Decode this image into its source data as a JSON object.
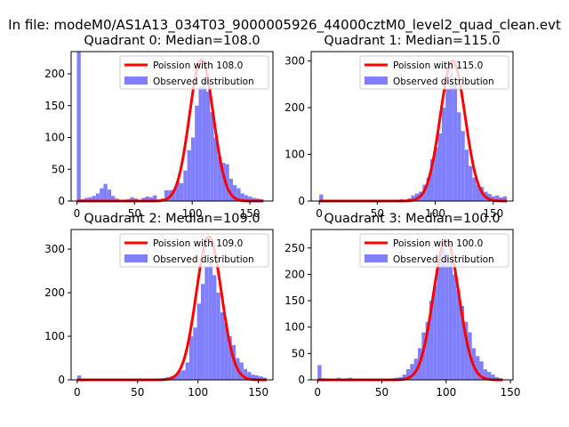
{
  "figure": {
    "suptitle": "In file: modeM0/AS1A13_034T03_9000005926_44000cztM0_level2_quad_clean.evt"
  },
  "colors": {
    "poisson_line": "#ff0000",
    "observed_bars": "#8080ff",
    "axis": "#000000",
    "background": "#ffffff"
  },
  "chart_data": [
    {
      "type": "bar",
      "title": "Quadrant 0: Median=108.0",
      "xlabel": "",
      "ylabel": "",
      "xlim": [
        -5,
        170
      ],
      "ylim": [
        0,
        235
      ],
      "xticks": [
        0,
        50,
        100,
        150
      ],
      "yticks": [
        0,
        50,
        100,
        150,
        200
      ],
      "legend_position": "top-right",
      "series": [
        {
          "name": "Observed distribution",
          "kind": "histogram",
          "bins": [
            [
              0,
              3.3,
              240
            ],
            [
              3.3,
              6.6,
              3
            ],
            [
              6.6,
              9.9,
              5
            ],
            [
              9.9,
              13.2,
              6
            ],
            [
              13.2,
              16.5,
              8
            ],
            [
              16.5,
              19.8,
              12
            ],
            [
              19.8,
              23.1,
              20
            ],
            [
              23.1,
              26.4,
              27
            ],
            [
              26.4,
              29.7,
              18
            ],
            [
              29.7,
              33,
              8
            ],
            [
              33,
              36.3,
              4
            ],
            [
              36.3,
              39.6,
              2
            ],
            [
              39.6,
              42.9,
              1
            ],
            [
              42.9,
              46.2,
              3
            ],
            [
              46.2,
              49.5,
              6
            ],
            [
              49.5,
              52.8,
              4
            ],
            [
              52.8,
              56.1,
              2
            ],
            [
              56.1,
              59.4,
              5
            ],
            [
              59.4,
              62.7,
              7
            ],
            [
              62.7,
              66,
              6
            ],
            [
              66,
              69.3,
              9
            ],
            [
              69.3,
              72.6,
              2
            ],
            [
              72.6,
              75.9,
              4
            ],
            [
              75.9,
              79.2,
              17
            ],
            [
              79.2,
              82.5,
              17
            ],
            [
              82.5,
              85.8,
              18
            ],
            [
              85.8,
              89.1,
              30
            ],
            [
              89.1,
              92.4,
              28
            ],
            [
              92.4,
              95.7,
              48
            ],
            [
              95.7,
              99,
              80
            ],
            [
              99,
              102.3,
              100
            ],
            [
              102.3,
              105.6,
              150
            ],
            [
              105.6,
              108.9,
              180
            ],
            [
              108.9,
              112.2,
              195
            ],
            [
              112.2,
              115.5,
              172
            ],
            [
              115.5,
              118.8,
              140
            ],
            [
              118.8,
              122.1,
              100
            ],
            [
              122.1,
              125.4,
              70
            ],
            [
              125.4,
              128.7,
              60
            ],
            [
              128.7,
              132,
              58
            ],
            [
              132,
              135.3,
              35
            ],
            [
              135.3,
              138.6,
              25
            ],
            [
              138.6,
              141.9,
              20
            ],
            [
              141.9,
              145.2,
              12
            ],
            [
              145.2,
              148.5,
              9
            ],
            [
              148.5,
              151.8,
              7
            ],
            [
              151.8,
              155.1,
              5
            ],
            [
              155.1,
              158.4,
              4
            ],
            [
              158.4,
              161.7,
              3
            ]
          ]
        },
        {
          "name": "Poission with 108.0",
          "kind": "line",
          "mean": 108.0,
          "peak": 222
        }
      ]
    },
    {
      "type": "bar",
      "title": "Quadrant 1: Median=115.0",
      "xlabel": "",
      "ylabel": "",
      "xlim": [
        -7,
        167
      ],
      "ylim": [
        0,
        320
      ],
      "xticks": [
        0,
        50,
        100,
        150
      ],
      "yticks": [
        0,
        100,
        200,
        300
      ],
      "legend_position": "top-right",
      "series": [
        {
          "name": "Observed distribution",
          "kind": "histogram",
          "bins": [
            [
              0,
              3.3,
              14
            ],
            [
              3.3,
              6.6,
              2
            ],
            [
              6.6,
              9.9,
              1
            ],
            [
              9.9,
              13.2,
              1
            ],
            [
              13.2,
              16.5,
              1
            ],
            [
              16.5,
              19.8,
              2
            ],
            [
              19.8,
              23.1,
              1
            ],
            [
              23.1,
              26.4,
              1
            ],
            [
              26.4,
              29.7,
              1
            ],
            [
              29.7,
              33,
              1
            ],
            [
              33,
              36.3,
              1
            ],
            [
              36.3,
              39.6,
              1
            ],
            [
              39.6,
              42.9,
              1
            ],
            [
              42.9,
              46.2,
              1
            ],
            [
              46.2,
              49.5,
              1
            ],
            [
              49.5,
              52.8,
              2
            ],
            [
              52.8,
              56.1,
              1
            ],
            [
              56.1,
              59.4,
              1
            ],
            [
              59.4,
              62.7,
              2
            ],
            [
              62.7,
              66,
              1
            ],
            [
              66,
              69.3,
              2
            ],
            [
              69.3,
              72.6,
              4
            ],
            [
              72.6,
              75.9,
              3
            ],
            [
              75.9,
              79.2,
              6
            ],
            [
              79.2,
              82.5,
              12
            ],
            [
              82.5,
              85.8,
              16
            ],
            [
              85.8,
              89.1,
              20
            ],
            [
              89.1,
              92.4,
              35
            ],
            [
              92.4,
              95.7,
              50
            ],
            [
              95.7,
              99,
              90
            ],
            [
              99,
              102.3,
              115
            ],
            [
              102.3,
              105.6,
              145
            ],
            [
              105.6,
              108.9,
              200
            ],
            [
              108.9,
              112.2,
              240
            ],
            [
              112.2,
              115.5,
              275
            ],
            [
              115.5,
              118.8,
              250
            ],
            [
              118.8,
              122.1,
              190
            ],
            [
              122.1,
              125.4,
              150
            ],
            [
              125.4,
              128.7,
              110
            ],
            [
              128.7,
              132,
              75
            ],
            [
              132,
              135.3,
              50
            ],
            [
              135.3,
              138.6,
              35
            ],
            [
              138.6,
              141.9,
              30
            ],
            [
              141.9,
              145.2,
              20
            ],
            [
              145.2,
              148.5,
              15
            ],
            [
              148.5,
              151.8,
              10
            ],
            [
              151.8,
              155.1,
              12
            ],
            [
              155.1,
              158.4,
              8
            ],
            [
              158.4,
              161.7,
              10
            ]
          ]
        },
        {
          "name": "Poission with 115.0",
          "kind": "line",
          "mean": 115.0,
          "peak": 300
        }
      ]
    },
    {
      "type": "bar",
      "title": "Quadrant 2: Median=109.0",
      "xlabel": "",
      "ylabel": "",
      "xlim": [
        -5,
        162
      ],
      "ylim": [
        0,
        345
      ],
      "xticks": [
        0,
        50,
        100,
        150
      ],
      "yticks": [
        0,
        100,
        200,
        300
      ],
      "legend_position": "top-right",
      "series": [
        {
          "name": "Observed distribution",
          "kind": "histogram",
          "bins": [
            [
              0,
              3.2,
              10
            ],
            [
              3.2,
              6.4,
              2
            ],
            [
              6.4,
              9.6,
              1
            ],
            [
              9.6,
              12.8,
              1
            ],
            [
              12.8,
              16,
              1
            ],
            [
              16,
              19.2,
              2
            ],
            [
              19.2,
              22.4,
              1
            ],
            [
              22.4,
              25.6,
              1
            ],
            [
              25.6,
              28.8,
              1
            ],
            [
              28.8,
              32,
              1
            ],
            [
              32,
              35.2,
              1
            ],
            [
              35.2,
              38.4,
              1
            ],
            [
              38.4,
              41.6,
              1
            ],
            [
              41.6,
              44.8,
              1
            ],
            [
              44.8,
              48,
              1
            ],
            [
              48,
              51.2,
              1
            ],
            [
              51.2,
              54.4,
              1
            ],
            [
              54.4,
              57.6,
              1
            ],
            [
              57.6,
              60.8,
              2
            ],
            [
              60.8,
              64,
              1
            ],
            [
              64,
              67.2,
              2
            ],
            [
              67.2,
              70.4,
              3
            ],
            [
              70.4,
              73.6,
              4
            ],
            [
              73.6,
              76.8,
              6
            ],
            [
              76.8,
              80,
              8
            ],
            [
              80,
              83.2,
              12
            ],
            [
              83.2,
              86.4,
              20
            ],
            [
              86.4,
              89.6,
              22
            ],
            [
              89.6,
              92.8,
              40
            ],
            [
              92.8,
              96,
              100
            ],
            [
              96,
              99.2,
              120
            ],
            [
              99.2,
              102.4,
              175
            ],
            [
              102.4,
              105.6,
              220
            ],
            [
              105.6,
              108.8,
              260
            ],
            [
              108.8,
              112,
              270
            ],
            [
              112,
              115.2,
              240
            ],
            [
              115.2,
              118.4,
              200
            ],
            [
              118.4,
              121.6,
              155
            ],
            [
              121.6,
              124.8,
              130
            ],
            [
              124.8,
              128,
              100
            ],
            [
              128,
              131.2,
              80
            ],
            [
              131.2,
              134.4,
              50
            ],
            [
              134.4,
              137.6,
              40
            ],
            [
              137.6,
              140.8,
              25
            ],
            [
              140.8,
              144,
              18
            ],
            [
              144,
              147.2,
              12
            ],
            [
              147.2,
              150.4,
              10
            ],
            [
              150.4,
              153.6,
              8
            ],
            [
              153.6,
              156.8,
              5
            ]
          ]
        },
        {
          "name": "Poission with 109.0",
          "kind": "line",
          "mean": 109.0,
          "peak": 328
        }
      ]
    },
    {
      "type": "bar",
      "title": "Quadrant 3: Median=100.0",
      "xlabel": "",
      "ylabel": "",
      "xlim": [
        -5,
        152
      ],
      "ylim": [
        0,
        285
      ],
      "xticks": [
        0,
        50,
        100,
        150
      ],
      "yticks": [
        0,
        50,
        100,
        150,
        200,
        250
      ],
      "legend_position": "top-right",
      "series": [
        {
          "name": "Observed distribution",
          "kind": "histogram",
          "bins": [
            [
              0,
              3,
              28
            ],
            [
              3,
              6,
              3
            ],
            [
              6,
              9,
              2
            ],
            [
              9,
              12,
              2
            ],
            [
              12,
              15,
              2
            ],
            [
              15,
              18,
              4
            ],
            [
              18,
              21,
              2
            ],
            [
              21,
              24,
              3
            ],
            [
              24,
              27,
              4
            ],
            [
              27,
              30,
              1
            ],
            [
              30,
              33,
              1
            ],
            [
              33,
              36,
              1
            ],
            [
              36,
              39,
              2
            ],
            [
              39,
              42,
              1
            ],
            [
              42,
              45,
              2
            ],
            [
              45,
              48,
              1
            ],
            [
              48,
              51,
              1
            ],
            [
              51,
              54,
              2
            ],
            [
              54,
              57,
              2
            ],
            [
              57,
              60,
              3
            ],
            [
              60,
              63,
              4
            ],
            [
              63,
              66,
              5
            ],
            [
              66,
              69,
              10
            ],
            [
              69,
              72,
              20
            ],
            [
              72,
              75,
              30
            ],
            [
              75,
              78,
              40
            ],
            [
              78,
              81,
              60
            ],
            [
              81,
              84,
              90
            ],
            [
              84,
              87,
              110
            ],
            [
              87,
              90,
              150
            ],
            [
              90,
              93,
              180
            ],
            [
              93,
              96,
              230
            ],
            [
              96,
              99,
              250
            ],
            [
              99,
              102,
              240
            ],
            [
              102,
              105,
              230
            ],
            [
              105,
              108,
              200
            ],
            [
              108,
              111,
              170
            ],
            [
              111,
              114,
              140
            ],
            [
              114,
              117,
              110
            ],
            [
              117,
              120,
              90
            ],
            [
              120,
              123,
              60
            ],
            [
              123,
              126,
              45
            ],
            [
              126,
              129,
              35
            ],
            [
              129,
              132,
              20
            ],
            [
              132,
              135,
              15
            ],
            [
              135,
              138,
              10
            ],
            [
              138,
              141,
              5
            ],
            [
              141,
              144,
              3
            ]
          ]
        },
        {
          "name": "Poission with 100.0",
          "kind": "line",
          "mean": 100.0,
          "peak": 265
        }
      ]
    }
  ]
}
